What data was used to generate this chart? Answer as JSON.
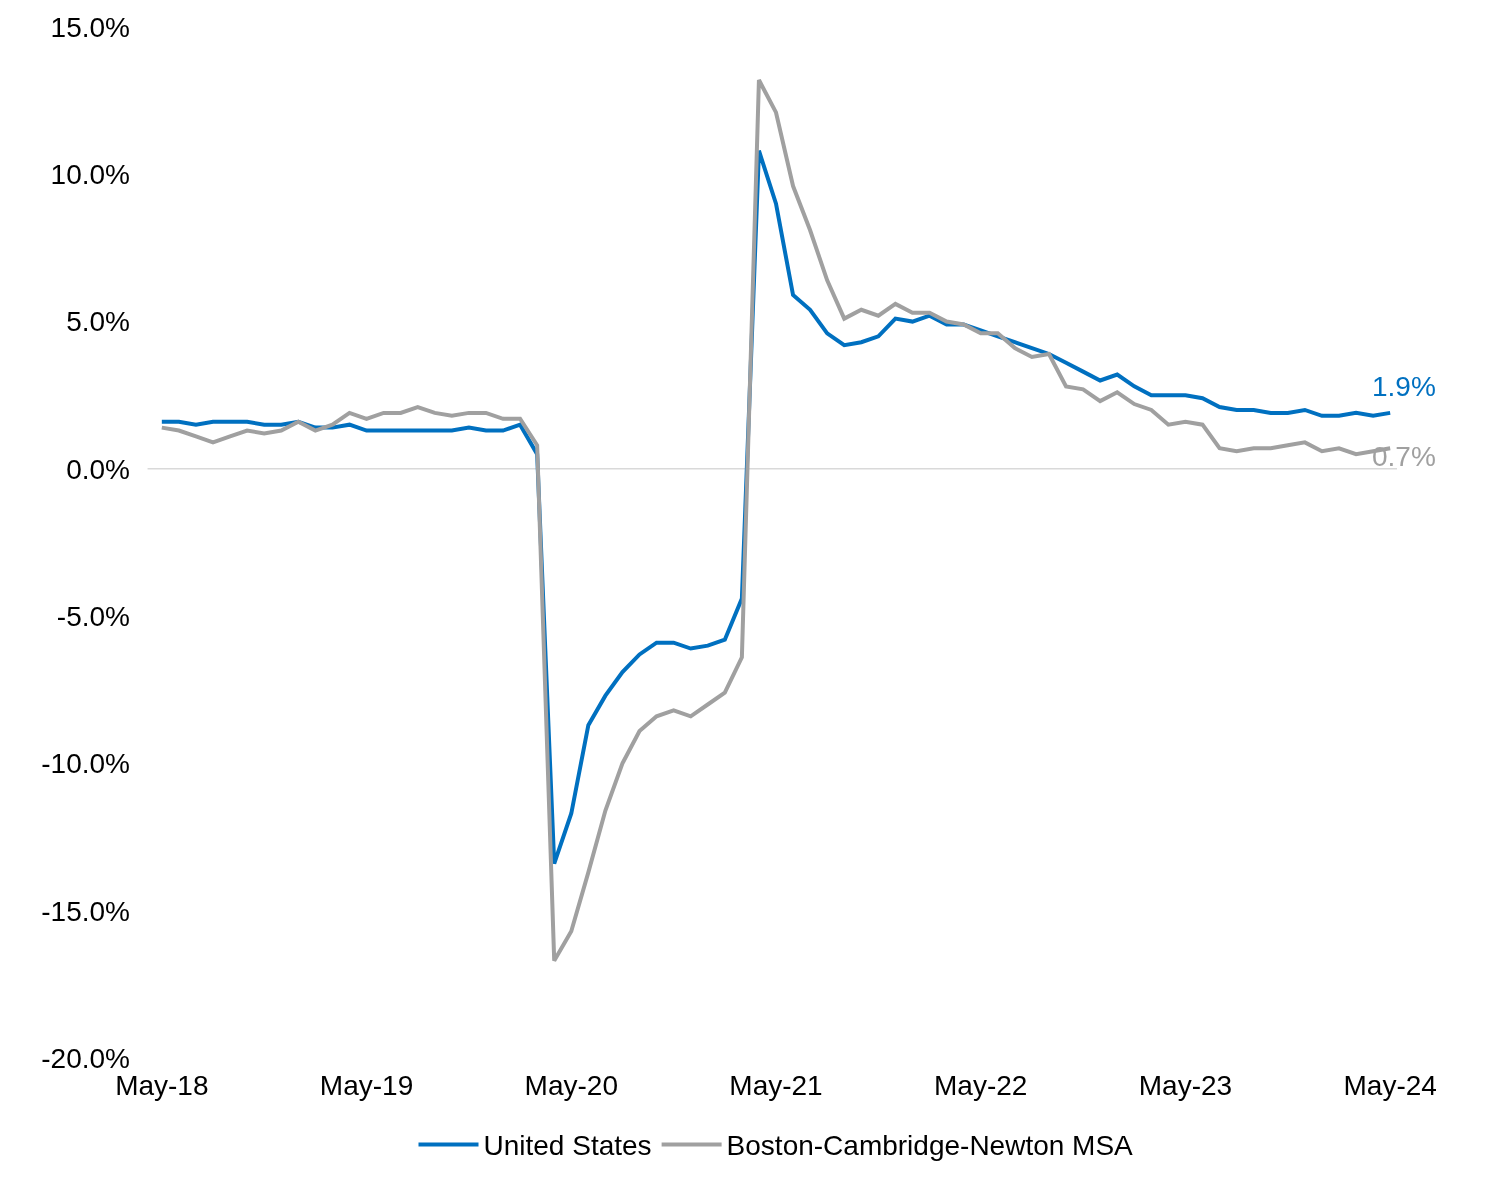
{
  "chart_data": {
    "type": "line",
    "categories": [
      "May-18",
      null,
      null,
      null,
      null,
      null,
      null,
      null,
      null,
      null,
      null,
      null,
      "May-19",
      null,
      null,
      null,
      null,
      null,
      null,
      null,
      null,
      null,
      null,
      null,
      "May-20",
      null,
      null,
      null,
      null,
      null,
      null,
      null,
      null,
      null,
      null,
      null,
      "May-21",
      null,
      null,
      null,
      null,
      null,
      null,
      null,
      null,
      null,
      null,
      null,
      "May-22",
      null,
      null,
      null,
      null,
      null,
      null,
      null,
      null,
      null,
      null,
      null,
      "May-23",
      null,
      null,
      null,
      null,
      null,
      null,
      null,
      null,
      null,
      null,
      null,
      "May-24"
    ],
    "series": [
      {
        "name": "United States",
        "color": "#0070c0",
        "values": [
          1.6,
          1.6,
          1.5,
          1.6,
          1.6,
          1.6,
          1.5,
          1.5,
          1.6,
          1.4,
          1.4,
          1.5,
          1.3,
          1.3,
          1.3,
          1.3,
          1.3,
          1.3,
          1.4,
          1.3,
          1.3,
          1.5,
          0.5,
          -13.4,
          -11.7,
          -8.7,
          -7.7,
          -6.9,
          -6.3,
          -5.9,
          -5.9,
          -6.1,
          -6.0,
          -5.8,
          -4.4,
          10.8,
          9.0,
          5.9,
          5.4,
          4.6,
          4.2,
          4.3,
          4.5,
          5.1,
          5.0,
          5.2,
          4.9,
          4.9,
          4.7,
          4.5,
          4.3,
          4.1,
          3.9,
          3.6,
          3.3,
          3.0,
          3.2,
          2.8,
          2.5,
          2.5,
          2.5,
          2.4,
          2.1,
          2.0,
          2.0,
          1.9,
          1.9,
          2.0,
          1.8,
          1.8,
          1.9,
          1.8,
          1.9
        ]
      },
      {
        "name": "Boston-Cambridge-Newton MSA",
        "color": "#a0a0a0",
        "values": [
          1.4,
          1.3,
          1.1,
          0.9,
          1.1,
          1.3,
          1.2,
          1.3,
          1.6,
          1.3,
          1.5,
          1.9,
          1.7,
          1.9,
          1.9,
          2.1,
          1.9,
          1.8,
          1.9,
          1.9,
          1.7,
          1.7,
          0.8,
          -16.7,
          -15.7,
          -13.7,
          -11.6,
          -10.0,
          -8.9,
          -8.4,
          -8.2,
          -8.4,
          -8.0,
          -7.6,
          -6.4,
          13.2,
          12.1,
          9.6,
          8.1,
          6.4,
          5.1,
          5.4,
          5.2,
          5.6,
          5.3,
          5.3,
          5.0,
          4.9,
          4.6,
          4.6,
          4.1,
          3.8,
          3.9,
          2.8,
          2.7,
          2.3,
          2.6,
          2.2,
          2.0,
          1.5,
          1.6,
          1.5,
          0.7,
          0.6,
          0.7,
          0.7,
          0.8,
          0.9,
          0.6,
          0.7,
          0.5,
          0.6,
          0.7
        ]
      }
    ],
    "ylim": [
      -20,
      15
    ],
    "yticks": [
      {
        "value": -20,
        "label": "-20.0%"
      },
      {
        "value": -15,
        "label": "-15.0%"
      },
      {
        "value": -10,
        "label": "-10.0%"
      },
      {
        "value": -5,
        "label": "-5.0%"
      },
      {
        "value": 0,
        "label": "0.0%"
      },
      {
        "value": 5,
        "label": "5.0%"
      },
      {
        "value": 10,
        "label": "10.0%"
      },
      {
        "value": 15,
        "label": "15.0%"
      }
    ],
    "ref_lines": [
      {
        "axis": "y",
        "value": 0,
        "color": "#d9d9d9"
      }
    ],
    "annotations": [
      {
        "text": "1.9%",
        "x": "May-24",
        "y": 1.9
      },
      {
        "text": "0.7%",
        "x": "May-24",
        "y": 0.7
      }
    ],
    "grid": false,
    "legend": "bottom",
    "marker": "none",
    "line_style": "solid"
  }
}
